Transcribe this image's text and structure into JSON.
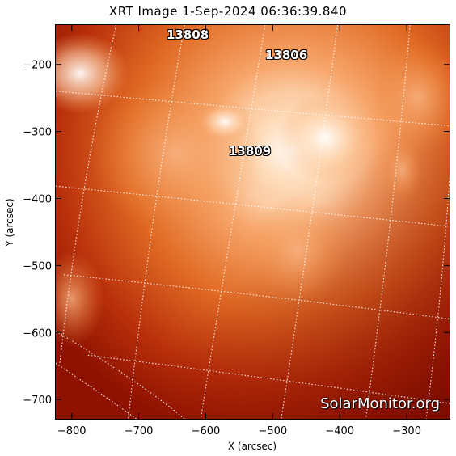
{
  "title": "XRT Image   1-Sep-2024 06:36:39.840",
  "x_axis": {
    "label": "X (arcsec)",
    "range": [
      -825,
      -235
    ],
    "ticks": [
      "-800",
      "-700",
      "-600",
      "-500",
      "-400",
      "-300"
    ],
    "tick_values": [
      -800,
      -700,
      -600,
      -500,
      -400,
      -300
    ]
  },
  "y_axis": {
    "label": "Y (arcsec)",
    "range": [
      -730,
      -140
    ],
    "ticks": [
      "-200",
      "-300",
      "-400",
      "-500",
      "-600",
      "-700"
    ],
    "tick_values": [
      -200,
      -300,
      -400,
      -500,
      -600,
      -700
    ]
  },
  "active_regions": [
    {
      "id": "13808",
      "x_arcsec": -605,
      "y_arcsec": -160
    },
    {
      "id": "13806",
      "x_arcsec": -465,
      "y_arcsec": -180
    },
    {
      "id": "13809",
      "x_arcsec": -515,
      "y_arcsec": -322
    }
  ],
  "watermark": "SolarMonitor.org",
  "colors": {
    "bright": "#ffffff",
    "mid": "#f08a3a",
    "dark": "#9c1400"
  }
}
